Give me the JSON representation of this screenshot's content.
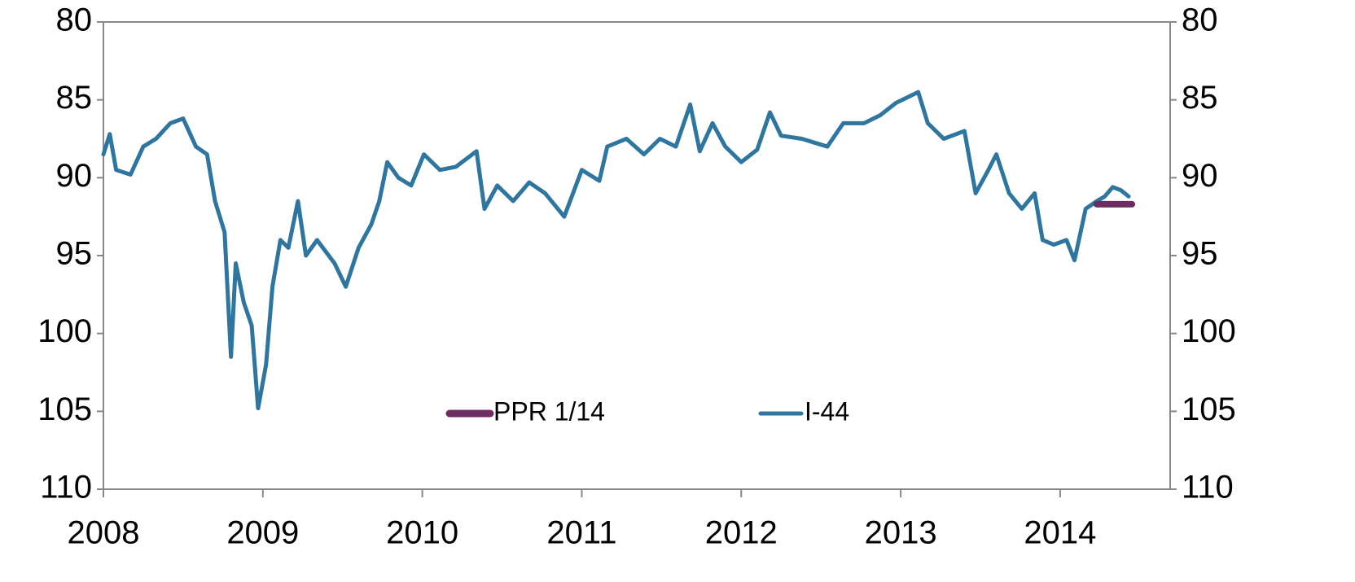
{
  "chart_data": {
    "type": "line",
    "xlim": [
      2008,
      2014.69
    ],
    "xticks": [
      2008,
      2009,
      2010,
      2011,
      2012,
      2013,
      2014
    ],
    "ylim": [
      80,
      110
    ],
    "yticks": [
      80,
      85,
      90,
      95,
      100,
      105,
      110
    ],
    "y2lim": [
      80,
      110
    ],
    "y2ticks": [
      80,
      85,
      90,
      95,
      100,
      105,
      110
    ],
    "y_inverted": true,
    "series": [
      {
        "name": "PPR 1/14",
        "color": "#6b2d62",
        "x": [
          2014.23,
          2014.45
        ],
        "values": [
          91.7,
          91.7
        ]
      },
      {
        "name": "I-44",
        "color": "#2e76a0",
        "x": [
          2008.0,
          2008.04,
          2008.08,
          2008.17,
          2008.25,
          2008.33,
          2008.42,
          2008.5,
          2008.58,
          2008.65,
          2008.7,
          2008.76,
          2008.8,
          2008.83,
          2008.88,
          2008.93,
          2008.97,
          2009.02,
          2009.06,
          2009.11,
          2009.16,
          2009.22,
          2009.27,
          2009.34,
          2009.45,
          2009.52,
          2009.6,
          2009.68,
          2009.73,
          2009.78,
          2009.85,
          2009.93,
          2010.01,
          2010.11,
          2010.21,
          2010.34,
          2010.39,
          2010.47,
          2010.57,
          2010.67,
          2010.77,
          2010.89,
          2011.0,
          2011.11,
          2011.16,
          2011.28,
          2011.39,
          2011.49,
          2011.59,
          2011.68,
          2011.74,
          2011.82,
          2011.9,
          2012.0,
          2012.1,
          2012.18,
          2012.25,
          2012.38,
          2012.54,
          2012.64,
          2012.77,
          2012.87,
          2012.97,
          2013.11,
          2013.17,
          2013.27,
          2013.4,
          2013.47,
          2013.55,
          2013.6,
          2013.68,
          2013.76,
          2013.84,
          2013.89,
          2013.96,
          2014.04,
          2014.09,
          2014.16,
          2014.23,
          2014.28,
          2014.33,
          2014.38,
          2014.43
        ],
        "values": [
          88.5,
          87.2,
          89.5,
          89.8,
          88,
          87.5,
          86.5,
          86.2,
          88,
          88.5,
          91.5,
          93.5,
          101.5,
          95.5,
          98,
          99.5,
          104.8,
          102,
          97,
          94,
          94.5,
          91.5,
          95,
          94,
          95.5,
          97,
          94.5,
          93,
          91.5,
          89,
          90,
          90.5,
          88.5,
          89.5,
          89.3,
          88.3,
          92,
          90.5,
          91.5,
          90.3,
          91,
          92.5,
          89.5,
          90.2,
          88,
          87.5,
          88.5,
          87.5,
          88,
          85.3,
          88.3,
          86.5,
          88,
          89,
          88.2,
          85.8,
          87.3,
          87.5,
          88,
          86.5,
          86.5,
          86,
          85.2,
          84.5,
          86.5,
          87.5,
          87,
          91,
          89.5,
          88.5,
          91,
          92,
          91,
          94,
          94.3,
          94,
          95.3,
          92,
          91.5,
          91.2,
          90.6,
          90.8,
          91.2
        ]
      }
    ]
  }
}
